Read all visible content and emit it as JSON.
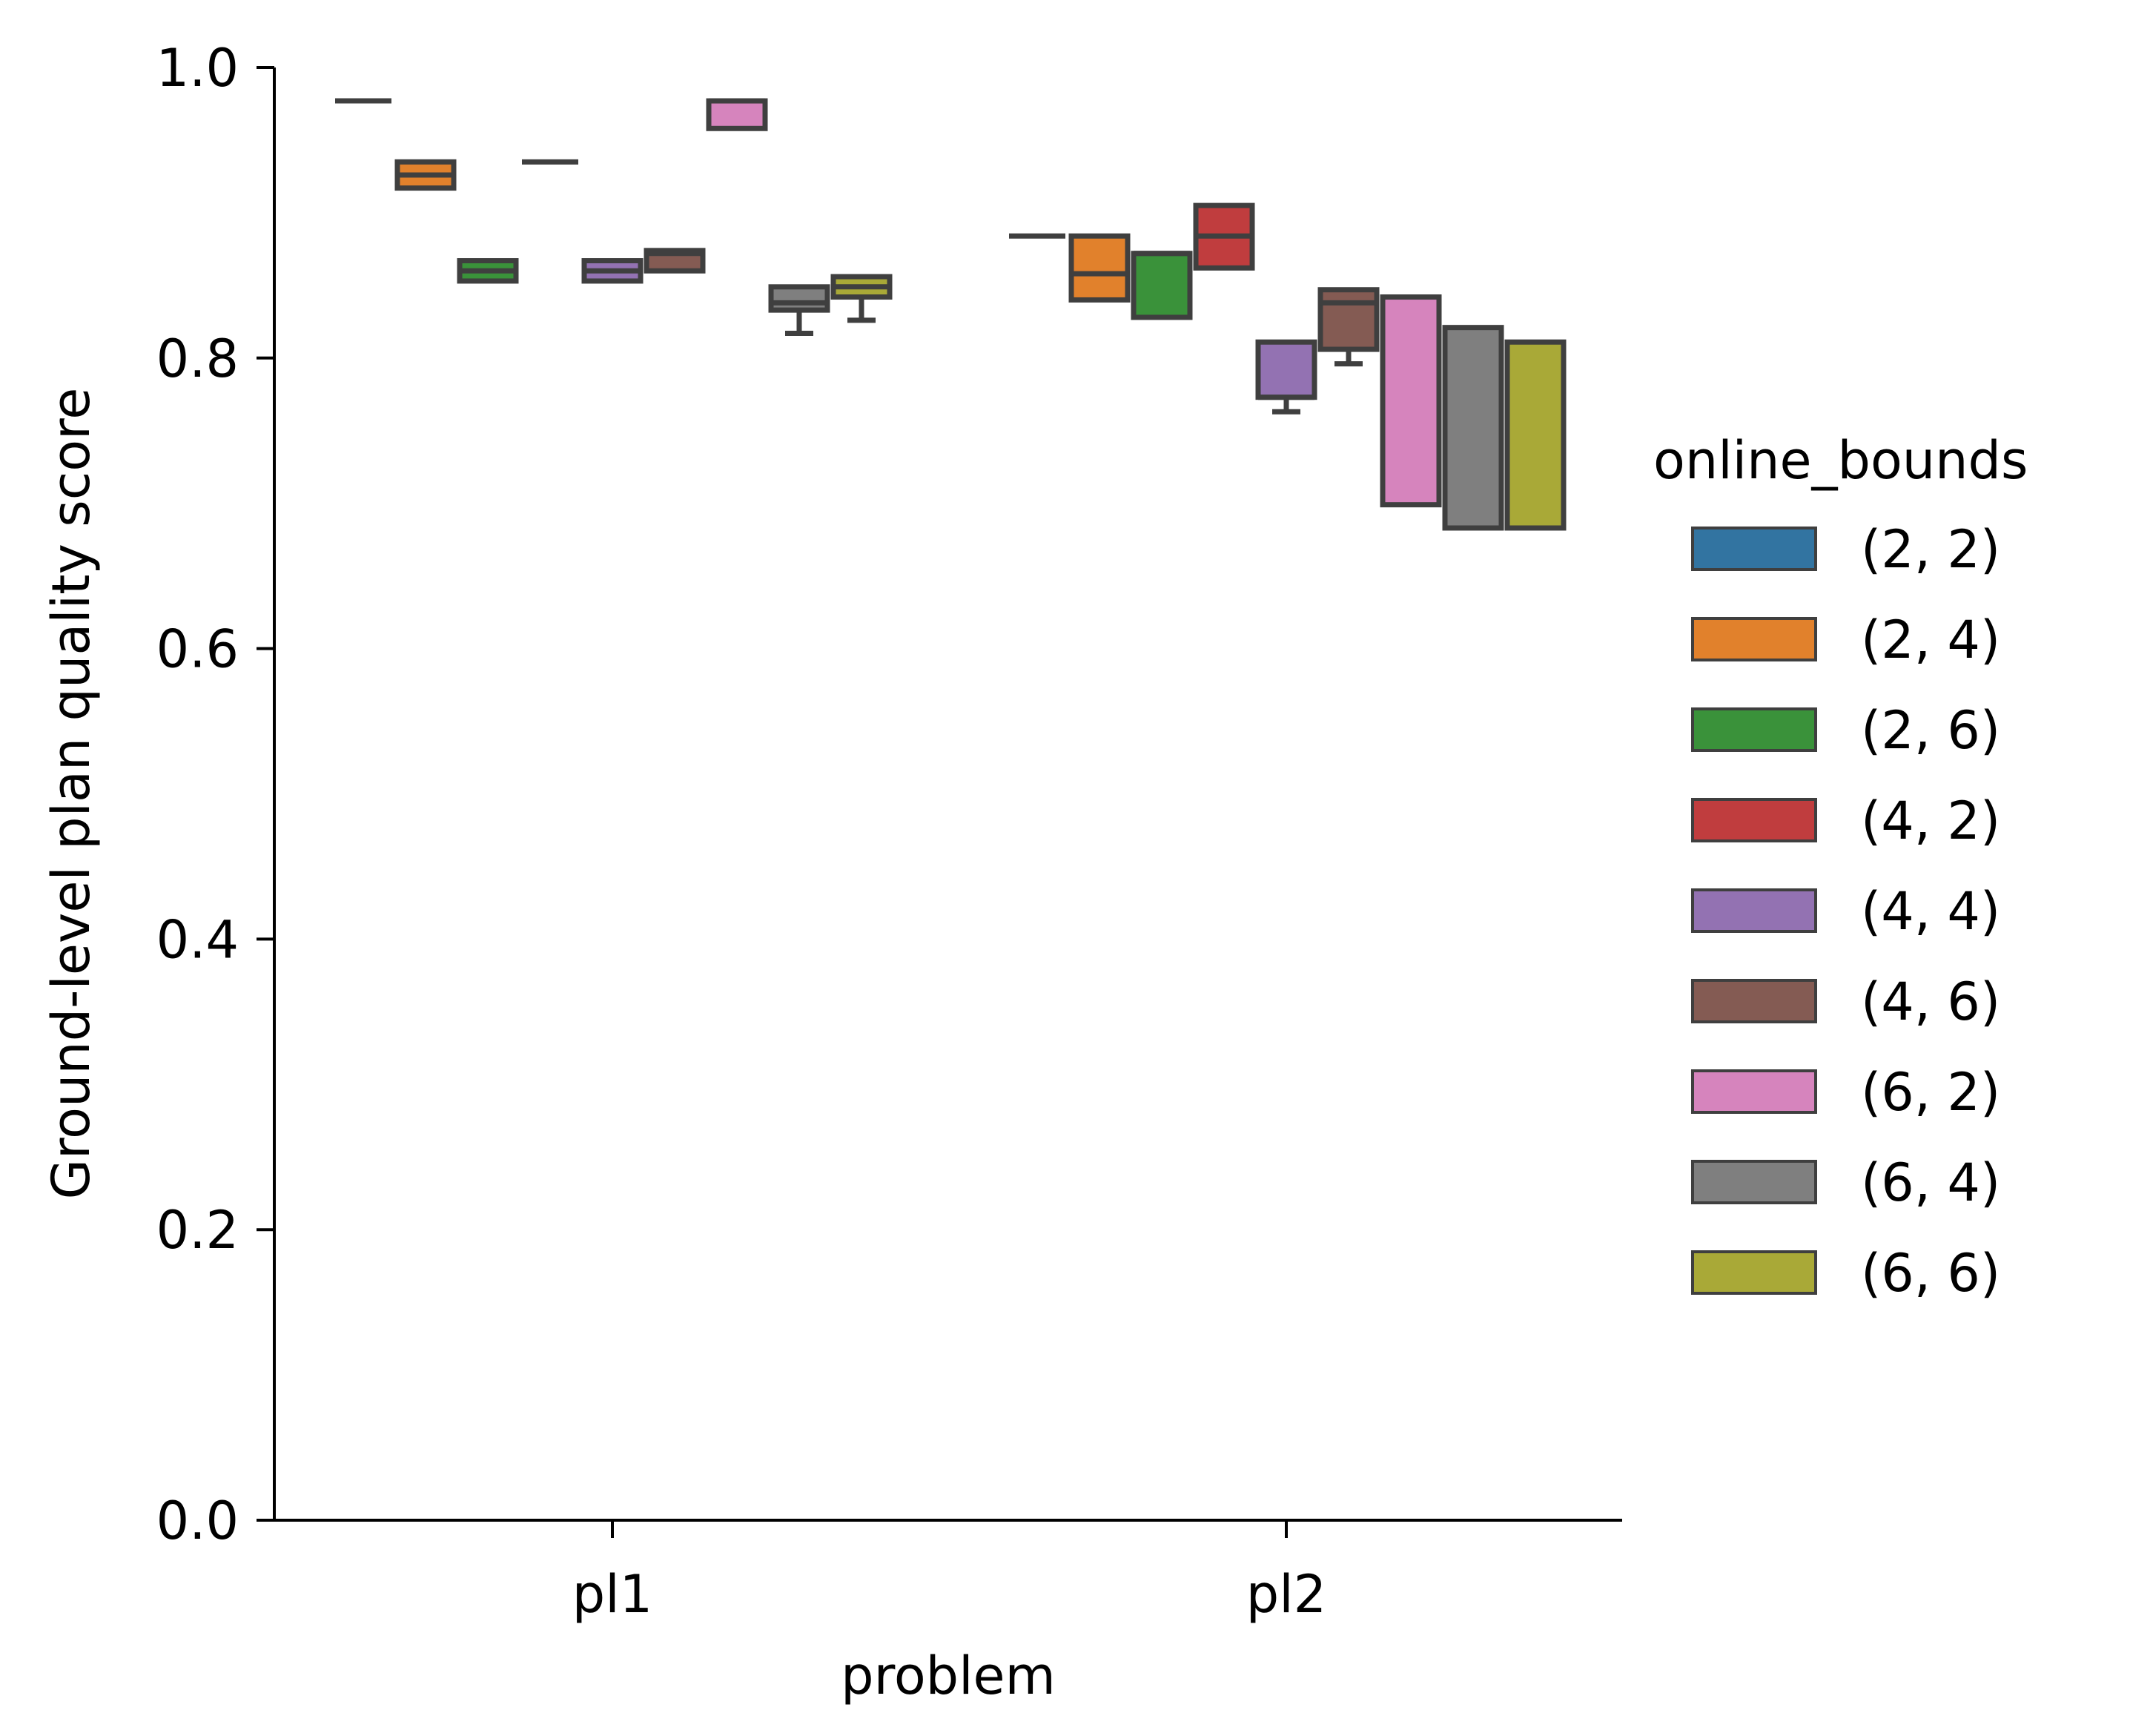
{
  "chart_data": {
    "type": "box",
    "xlabel": "problem",
    "ylabel": "Ground-level plan quality score",
    "categories": [
      "pl1",
      "pl2"
    ],
    "ylim": [
      0.0,
      1.0
    ],
    "yticks": [
      "0.0",
      "0.2",
      "0.4",
      "0.6",
      "0.8",
      "1.0"
    ],
    "grid": false,
    "legend": {
      "title": "online_bounds",
      "placement": "right"
    },
    "series": [
      {
        "name": "(2, 2)",
        "color": "#3274a1",
        "boxes": [
          {
            "q1": 0.977,
            "median": 0.977,
            "q3": 0.977,
            "whislo": 0.977,
            "whishi": 0.977
          },
          {
            "q1": 0.884,
            "median": 0.884,
            "q3": 0.884,
            "whislo": 0.884,
            "whishi": 0.884
          }
        ]
      },
      {
        "name": "(2, 4)",
        "color": "#e1812c",
        "boxes": [
          {
            "q1": 0.917,
            "median": 0.926,
            "q3": 0.935,
            "whislo": 0.917,
            "whishi": 0.935
          },
          {
            "q1": 0.84,
            "median": 0.858,
            "q3": 0.884,
            "whislo": 0.84,
            "whishi": 0.884
          }
        ]
      },
      {
        "name": "(2, 6)",
        "color": "#3a923a",
        "boxes": [
          {
            "q1": 0.853,
            "median": 0.86,
            "q3": 0.867,
            "whislo": 0.853,
            "whishi": 0.867
          },
          {
            "q1": 0.828,
            "median": 0.872,
            "q3": 0.872,
            "whislo": 0.828,
            "whishi": 0.872
          }
        ]
      },
      {
        "name": "(4, 2)",
        "color": "#c03d3e",
        "boxes": [
          {
            "q1": 0.935,
            "median": 0.935,
            "q3": 0.935,
            "whislo": 0.935,
            "whishi": 0.935
          },
          {
            "q1": 0.862,
            "median": 0.884,
            "q3": 0.905,
            "whislo": 0.862,
            "whishi": 0.905
          }
        ]
      },
      {
        "name": "(4, 4)",
        "color": "#9372b2",
        "boxes": [
          {
            "q1": 0.853,
            "median": 0.86,
            "q3": 0.867,
            "whislo": 0.853,
            "whishi": 0.867
          },
          {
            "q1": 0.773,
            "median": 0.773,
            "q3": 0.811,
            "whislo": 0.763,
            "whishi": 0.811
          }
        ]
      },
      {
        "name": "(4, 6)",
        "color": "#845b53",
        "boxes": [
          {
            "q1": 0.86,
            "median": 0.872,
            "q3": 0.874,
            "whislo": 0.86,
            "whishi": 0.874
          },
          {
            "q1": 0.806,
            "median": 0.838,
            "q3": 0.847,
            "whislo": 0.796,
            "whishi": 0.847
          }
        ]
      },
      {
        "name": "(6, 2)",
        "color": "#d684bd",
        "boxes": [
          {
            "q1": 0.958,
            "median": 0.977,
            "q3": 0.977,
            "whislo": 0.958,
            "whishi": 0.977
          },
          {
            "q1": 0.699,
            "median": 0.842,
            "q3": 0.842,
            "whislo": 0.699,
            "whishi": 0.842
          }
        ]
      },
      {
        "name": "(6, 4)",
        "color": "#7f7f7f",
        "boxes": [
          {
            "q1": 0.833,
            "median": 0.838,
            "q3": 0.849,
            "whislo": 0.817,
            "whishi": 0.849
          },
          {
            "q1": 0.683,
            "median": 0.683,
            "q3": 0.821,
            "whislo": 0.683,
            "whishi": 0.821
          }
        ]
      },
      {
        "name": "(6, 6)",
        "color": "#a9a937",
        "boxes": [
          {
            "q1": 0.842,
            "median": 0.849,
            "q3": 0.856,
            "whislo": 0.826,
            "whishi": 0.856
          },
          {
            "q1": 0.683,
            "median": 0.683,
            "q3": 0.811,
            "whislo": 0.683,
            "whishi": 0.811
          }
        ]
      }
    ]
  }
}
